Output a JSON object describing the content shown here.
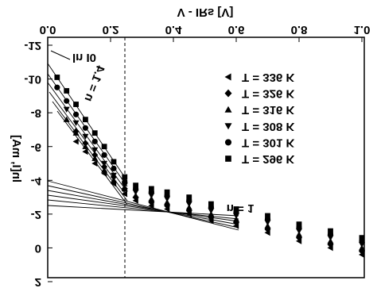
{
  "chart_data": {
    "type": "scatter",
    "xlabel": "V - IRs [V]",
    "ylabel": "ln[I, mA]",
    "annotations": [
      "ln I0",
      "n = 1.4",
      "n = 1"
    ],
    "x": [
      0.03,
      0.06,
      0.09,
      0.12,
      0.15,
      0.18,
      0.21,
      0.245,
      0.28,
      0.33,
      0.38,
      0.45,
      0.52,
      0.6,
      0.7,
      0.8,
      0.9,
      1.0
    ],
    "series": [
      {
        "name": "T = 336 K",
        "marker": "triangle-left",
        "color": "#000000",
        "values": [
          null,
          null,
          -6.3,
          -5.7,
          -5.0,
          -4.4,
          -3.8,
          -3.2,
          -2.8,
          -2.5,
          -2.3,
          -2.0,
          -1.6,
          -1.3,
          -0.9,
          -0.4,
          0.0,
          0.4
        ]
      },
      {
        "name": "T = 326 K",
        "marker": "diamond",
        "color": "#000000",
        "values": [
          null,
          null,
          -6.9,
          -6.2,
          -5.5,
          -4.8,
          -4.2,
          -3.5,
          -3.0,
          -2.7,
          -2.5,
          -2.2,
          -1.8,
          -1.5,
          -1.1,
          -0.6,
          -0.2,
          0.2
        ]
      },
      {
        "name": "T = 316 K",
        "marker": "triangle-up",
        "color": "#000000",
        "values": [
          null,
          -7.6,
          -6.8,
          -6.0,
          -5.3,
          -4.6,
          -4.0,
          -3.5,
          -3.1,
          -2.9,
          -2.7,
          -2.4,
          -2.0,
          -1.7,
          -1.3,
          -0.8,
          -0.4,
          0.0
        ]
      },
      {
        "name": "T = 308 K",
        "marker": "triangle-down",
        "color": "#000000",
        "values": [
          null,
          -8.2,
          -7.4,
          -6.6,
          -5.8,
          -5.0,
          -4.3,
          -3.7,
          -3.3,
          -3.1,
          -2.9,
          -2.6,
          -2.2,
          -1.9,
          -1.5,
          -1.0,
          -0.6,
          -0.2
        ]
      },
      {
        "name": "T = 301 K",
        "marker": "circle",
        "color": "#000000",
        "values": [
          -9.5,
          -8.7,
          -7.9,
          -7.1,
          -6.3,
          -5.5,
          -4.7,
          -3.9,
          -3.5,
          -3.3,
          -3.1,
          -2.8,
          -2.4,
          -2.1,
          -1.7,
          -1.2,
          -0.8,
          -0.4
        ]
      },
      {
        "name": "T = 296 K",
        "marker": "square",
        "color": "#000000",
        "values": [
          -10.1,
          -9.3,
          -8.5,
          -7.6,
          -6.8,
          -6.0,
          -5.1,
          -4.2,
          -3.7,
          -3.5,
          -3.3,
          -3.0,
          -2.6,
          -2.3,
          -1.9,
          -1.4,
          -1.0,
          -0.6
        ]
      }
    ],
    "xlim": [
      0,
      1
    ],
    "xticks": [
      {
        "value": 0,
        "label": "0.0"
      },
      0.2,
      0.4,
      0.6,
      0.8,
      {
        "value": 1,
        "label": "1.0"
      }
    ],
    "ylim": [
      2,
      -12
    ],
    "yticks": [
      -12,
      -10,
      -8,
      -6,
      -4,
      -2,
      0,
      2
    ]
  }
}
